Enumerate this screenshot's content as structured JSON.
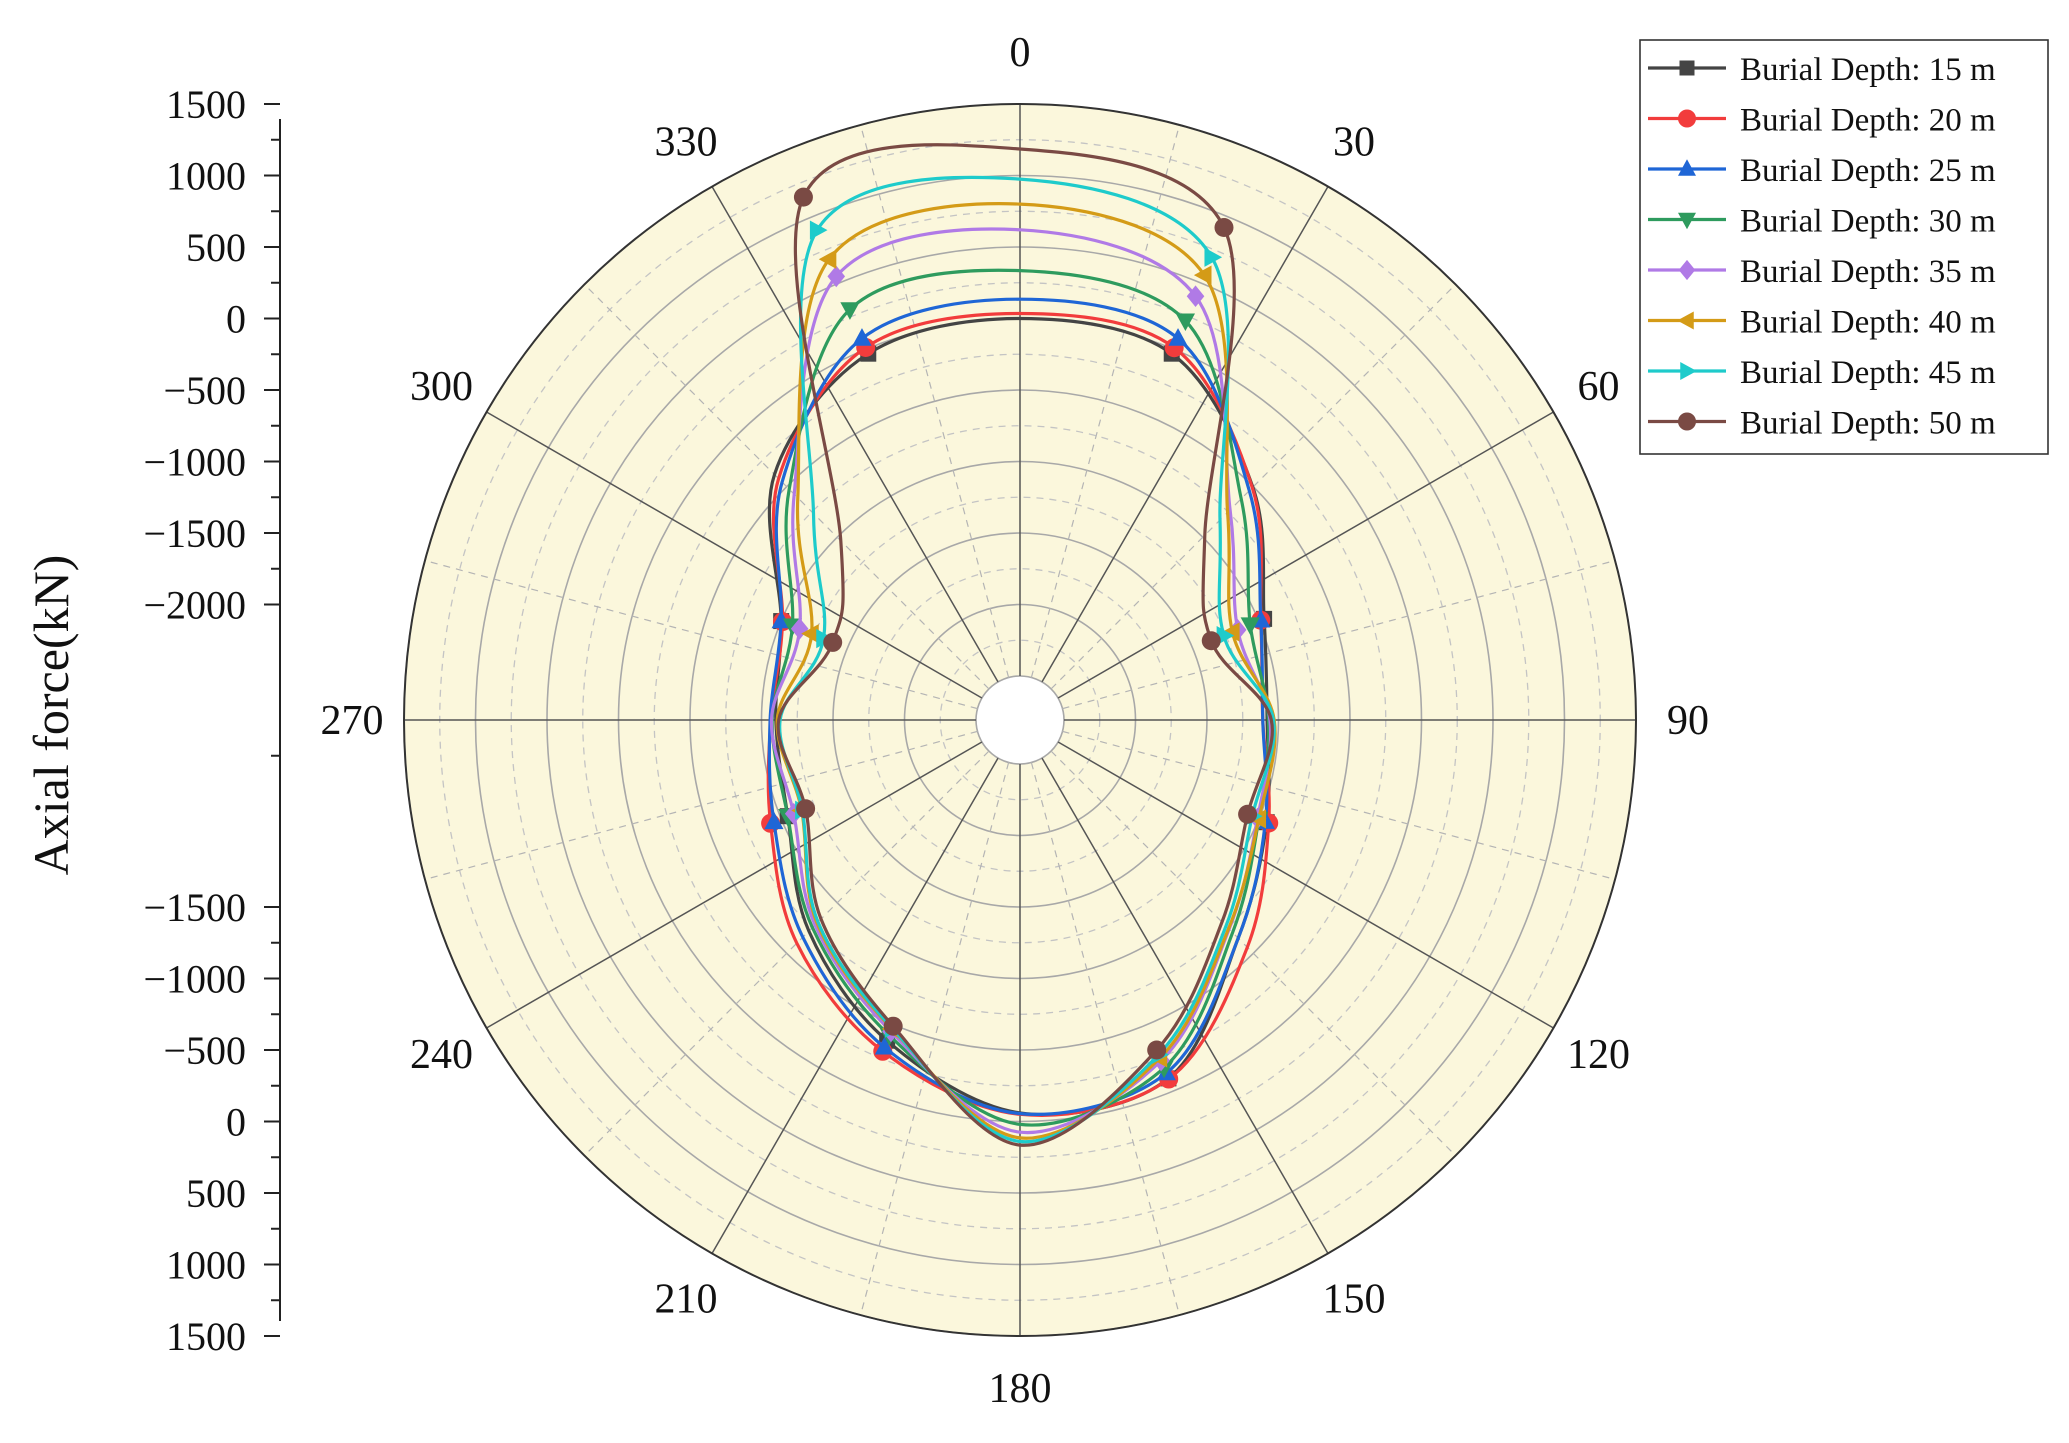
{
  "chart_data": {
    "type": "polar-line",
    "ylabel": "Axial force(kN)",
    "angle_ticks": [
      "0",
      "30",
      "60",
      "90",
      "120",
      "150",
      "180",
      "210",
      "240",
      "270",
      "300",
      "330"
    ],
    "radial_ticks_upper": [
      "1500",
      "1000",
      "500",
      "0",
      "−500",
      "−1000",
      "−1500",
      "−2000"
    ],
    "radial_ticks_lower": [
      "−1500",
      "−1000",
      "−500",
      "0",
      "500",
      "1000",
      "1500"
    ],
    "r_range": [
      -2500,
      1500
    ],
    "background": "#fbf7dc",
    "grid": true,
    "legend_position": "top-right",
    "angles": [
      0,
      22.5,
      45,
      67.5,
      90,
      112.5,
      135,
      157.5,
      180,
      202.5,
      225,
      247.5,
      270,
      292.5,
      315,
      337.5
    ],
    "series": [
      {
        "name": "Burial Depth: 15 m",
        "color": "#444444",
        "marker": "square",
        "values": [
          0,
          -35,
          -505,
          -960,
          -1080,
          -940,
          -650,
          -95,
          -60,
          -380,
          -720,
          -1050,
          -1100,
          -1000,
          -380,
          -35
        ]
      },
      {
        "name": "Burial Depth: 20 m",
        "color": "#f23c3c",
        "marker": "circle",
        "values": [
          35,
          10,
          -510,
          -985,
          -1110,
          -925,
          -560,
          -90,
          -50,
          -300,
          -600,
          -920,
          -1065,
          -1010,
          -420,
          12
        ]
      },
      {
        "name": "Burial Depth: 25 m",
        "color": "#1f66d6",
        "marker": "triangle-up",
        "values": [
          135,
          80,
          -540,
          -985,
          -1110,
          -950,
          -650,
          -135,
          -55,
          -330,
          -660,
          -945,
          -1060,
          -1000,
          -455,
          80
        ]
      },
      {
        "name": "Burial Depth: 30 m",
        "color": "#2e9b5e",
        "marker": "triangle-down",
        "values": [
          335,
          215,
          -620,
          -1065,
          -1070,
          -1000,
          -705,
          -175,
          20,
          -420,
          -755,
          -1050,
          -1075,
          -1085,
          -525,
          300
        ]
      },
      {
        "name": "Burial Depth: 35 m",
        "color": "#b07ae6",
        "marker": "diamond",
        "values": [
          620,
          400,
          -730,
          -1160,
          -1060,
          -1010,
          -740,
          -230,
          75,
          -450,
          -780,
          -1095,
          -1070,
          -1140,
          -575,
          550
        ]
      },
      {
        "name": "Burial Depth: 40 m",
        "color": "#d49b17",
        "marker": "triangle-left",
        "values": [
          800,
          560,
          -755,
          -1200,
          -1030,
          -1000,
          -745,
          -250,
          115,
          -470,
          -800,
          -1155,
          -1110,
          -1230,
          -610,
          680
        ]
      },
      {
        "name": "Burial Depth: 45 m",
        "color": "#1ecbcb",
        "marker": "triangle-right",
        "values": [
          975,
          695,
          -830,
          -1265,
          -1035,
          -1050,
          -770,
          -275,
          140,
          -475,
          -810,
          -1160,
          -1130,
          -1320,
          -765,
          900
        ]
      },
      {
        "name": "Burial Depth: 50 m",
        "color": "#7a4a44",
        "marker": "circle",
        "values": [
          1185,
          920,
          -980,
          -1360,
          -1050,
          -1085,
          -810,
          -310,
          165,
          -490,
          -840,
          -1185,
          -1120,
          -1390,
          -1035,
          1150
        ]
      }
    ]
  }
}
